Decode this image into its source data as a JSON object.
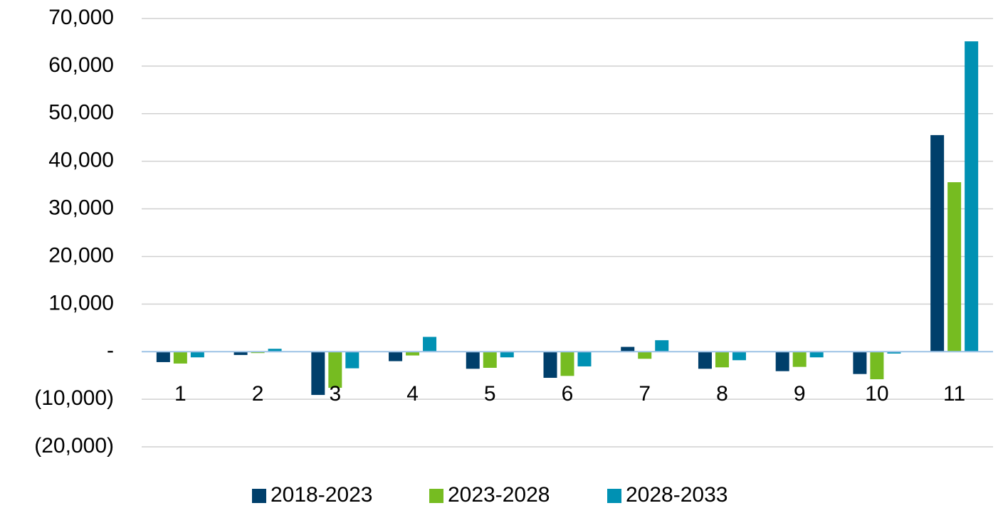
{
  "chart_data": {
    "type": "bar",
    "categories": [
      "1",
      "2",
      "3",
      "4",
      "5",
      "6",
      "7",
      "8",
      "9",
      "10",
      "11"
    ],
    "series": [
      {
        "name": "2018-2023",
        "color": "#003f6b",
        "values": [
          -2200,
          -700,
          -9100,
          -2000,
          -3600,
          -5500,
          1000,
          -3600,
          -4100,
          -4700,
          45500
        ]
      },
      {
        "name": "2023-2028",
        "color": "#76bc21",
        "values": [
          -2500,
          -300,
          -7600,
          -800,
          -3400,
          -5100,
          -1500,
          -3300,
          -3200,
          -5800,
          35600
        ]
      },
      {
        "name": "2028-2033",
        "color": "#0091b3",
        "values": [
          -1200,
          600,
          -3500,
          3100,
          -1200,
          -3100,
          2400,
          -1800,
          -1200,
          -400,
          65200
        ]
      }
    ],
    "ylim": [
      -20000,
      70000
    ],
    "yticks": [
      {
        "value": -20000,
        "label": "(20,000)"
      },
      {
        "value": -10000,
        "label": "(10,000)"
      },
      {
        "value": 0,
        "label": "-"
      },
      {
        "value": 10000,
        "label": "10,000"
      },
      {
        "value": 20000,
        "label": "20,000"
      },
      {
        "value": 30000,
        "label": "30,000"
      },
      {
        "value": 40000,
        "label": "40,000"
      },
      {
        "value": 50000,
        "label": "50,000"
      },
      {
        "value": 60000,
        "label": "60,000"
      },
      {
        "value": 70000,
        "label": "70,000"
      }
    ],
    "grid": true,
    "legend": "bottom"
  }
}
